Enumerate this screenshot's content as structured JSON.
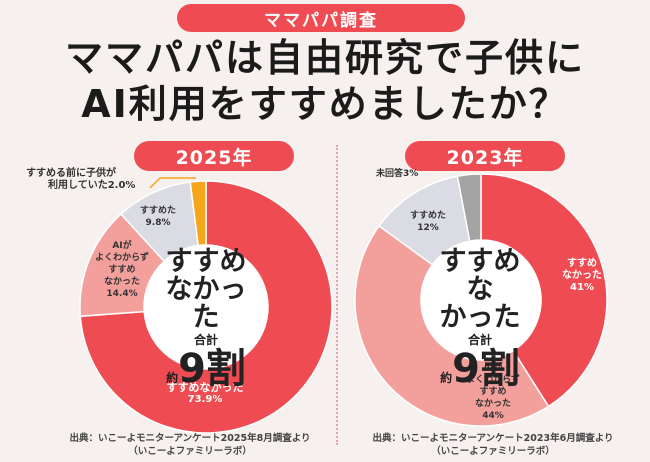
{
  "header": {
    "tag": "ママパパ調査",
    "title_line1": "ママパパは自由研究で子供に",
    "title_line2": "AI利用をすすめましたか？"
  },
  "left": {
    "year": "2025年",
    "center_line1": "すすめ",
    "center_line2": "なかった",
    "center_total": "合計",
    "center_yaku": "約",
    "center_num": "9割",
    "source_line1": "出典：いこーよモニターアンケート2025年8月調査より",
    "source_line2": "（いこーよファミリーラボ）"
  },
  "right": {
    "year": "2023年",
    "center_line1": "すすめな",
    "center_line2": "かった",
    "center_total": "合計",
    "center_yaku": "約",
    "center_num": "9割",
    "source_line1": "出典：いこーよモニターアンケート2023年6月調査より",
    "source_line2": "（いこーよファミリーラボ）"
  },
  "colors": {
    "accent": "#ee4c52",
    "salmon": "#f3a09d",
    "gray_light": "#dadbe3",
    "orange": "#f6a61a",
    "gray_dark": "#a3a3a3",
    "background": "#f6f1ee"
  },
  "chart_data": [
    {
      "type": "pie",
      "title": "2025年",
      "slices": [
        {
          "label": "すすめなかった",
          "value": 73.9,
          "display": "73.9%",
          "color": "#ee4c52"
        },
        {
          "label": "AIがよくわからずすすめなかった",
          "value": 14.4,
          "display": "14.4%",
          "color": "#f3a09d"
        },
        {
          "label": "すすめた",
          "value": 9.8,
          "display": "9.8%",
          "color": "#dadbe3"
        },
        {
          "label": "すすめる前に子供が利用していた",
          "value": 2.0,
          "display": "2.0%",
          "color": "#f6a61a"
        }
      ]
    },
    {
      "type": "pie",
      "title": "2023年",
      "slices": [
        {
          "label": "すすめなかった",
          "value": 41,
          "display": "41%",
          "color": "#ee4c52"
        },
        {
          "label": "AIがよくわからずすすめなかった",
          "value": 44,
          "display": "44%",
          "color": "#f3a09d"
        },
        {
          "label": "すすめた",
          "value": 12,
          "display": "12%",
          "color": "#dadbe3"
        },
        {
          "label": "未回答",
          "value": 3,
          "display": "3%",
          "color": "#a3a3a3"
        }
      ]
    }
  ]
}
